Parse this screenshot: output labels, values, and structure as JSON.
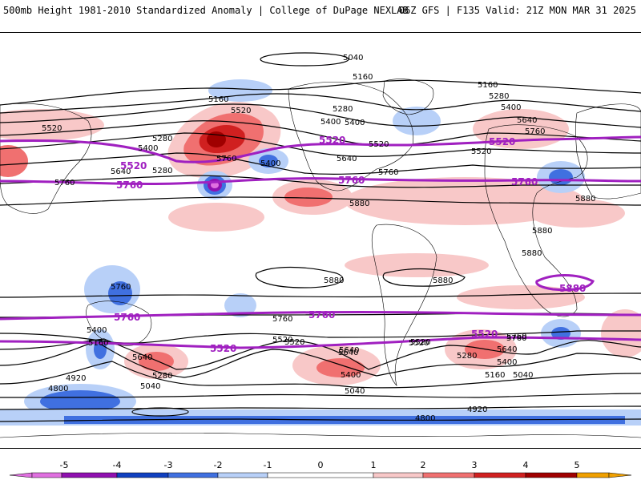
{
  "header": {
    "title_left": "500mb Height 1981-2010 Standardized Anomaly | College of DuPage NEXLAB",
    "title_right": "06Z GFS | F135 Valid: 21Z MON MAR 31 2025"
  },
  "map": {
    "contour_labels_black": [
      "5040",
      "5160",
      "5160",
      "5280",
      "5400",
      "5520",
      "5280",
      "5400",
      "5520",
      "5160",
      "5280",
      "5400",
      "5640",
      "5760",
      "5520",
      "5520",
      "5400",
      "5280",
      "5400",
      "5640",
      "5760",
      "5760",
      "5640",
      "5760",
      "5880",
      "5880",
      "5880",
      "5880",
      "5880",
      "5880",
      "5760",
      "5760",
      "5760",
      "5400",
      "5160",
      "5520",
      "5640",
      "5280",
      "5040",
      "4920",
      "4800",
      "5520",
      "5640",
      "5400",
      "5040",
      "5280",
      "5400",
      "5640",
      "5760",
      "5160",
      "5040",
      "4920",
      "4800",
      "5520",
      "5640",
      "5520"
    ],
    "contour_labels_purple": [
      "5520",
      "5520",
      "5520",
      "5760",
      "5760",
      "5760",
      "5880",
      "5760",
      "5760",
      "5520",
      "5520"
    ],
    "colors": {
      "purple_5520_5760": "#a020c0",
      "anom_neg5": "#e070e0",
      "anom_neg4": "#9010b0",
      "anom_neg3": "#1040c0",
      "anom_neg2": "#4070e0",
      "anom_neg1": "#b8d0f8",
      "anom_pos1": "#f8c8c8",
      "anom_pos2": "#f07070",
      "anom_pos3": "#d02020",
      "anom_pos4": "#a00000",
      "anom_pos5": "#f0a000"
    }
  },
  "colorbar": {
    "ticks": [
      "-5",
      "-4",
      "-3",
      "-2",
      "-1",
      "0",
      "1",
      "2",
      "3",
      "4",
      "5"
    ]
  }
}
